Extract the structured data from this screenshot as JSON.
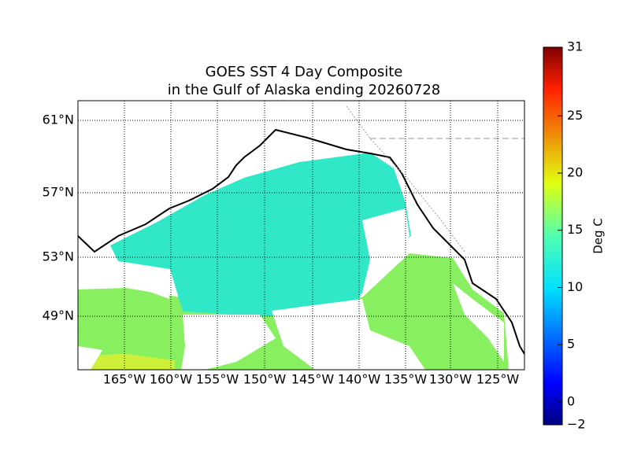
{
  "map": {
    "title": [
      "GOES SST 4 Day Composite",
      "in the Gulf of Alaska ending 20260728"
    ],
    "lat_labels": [
      "61°N",
      "57°N",
      "53°N",
      "49°N"
    ],
    "lon_labels": [
      "165°W",
      "160°W",
      "155°W",
      "150°W",
      "145°W",
      "140°W",
      "135°W",
      "130°W",
      "125°W"
    ],
    "colorbar": {
      "label": "Deg C",
      "range": [
        -2,
        31
      ],
      "ticks": [
        {
          "value": -2,
          "label": "−2"
        },
        0,
        5,
        10,
        15,
        20,
        25,
        31
      ]
    }
  }
}
